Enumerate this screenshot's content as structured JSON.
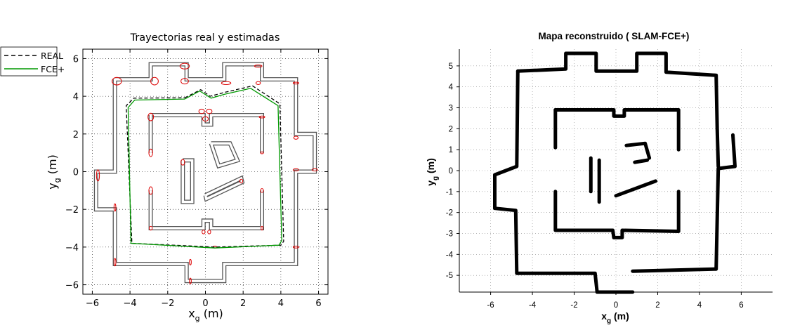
{
  "chart_data": [
    {
      "type": "line",
      "title": "Trayectorias real y estimadas",
      "xlabel": "x",
      "xlabel_sub": "g",
      "xlabel_unit": " (m)",
      "ylabel": "y",
      "ylabel_sub": "g",
      "ylabel_unit": " (m)",
      "xlim": [
        -6.5,
        6.5
      ],
      "ylim": [
        -6.5,
        6.5
      ],
      "xticks": [
        -6,
        -4,
        -2,
        0,
        2,
        4,
        6
      ],
      "yticks": [
        -6,
        -4,
        -2,
        0,
        2,
        4,
        6
      ],
      "grid": true,
      "legend": {
        "placement": "outside-top-left",
        "entries": [
          {
            "label": "REAL",
            "style": "dashed",
            "color": "#000000"
          },
          {
            "label": "FCE+",
            "style": "solid",
            "color": "#009900"
          }
        ]
      },
      "series": [
        {
          "name": "REAL",
          "color": "#000000",
          "points": [
            [
              -1.1,
              3.92
            ],
            [
              -0.25,
              4.35
            ],
            [
              0.25,
              4.0
            ],
            [
              1.0,
              4.2
            ],
            [
              2.5,
              4.55
            ],
            [
              3.95,
              3.6
            ],
            [
              4.15,
              -3.7
            ],
            [
              4.0,
              -3.9
            ],
            [
              0.5,
              -4.0
            ],
            [
              -3.9,
              -3.8
            ],
            [
              -4.2,
              3.5
            ],
            [
              -3.8,
              3.9
            ],
            [
              -1.1,
              3.92
            ]
          ]
        },
        {
          "name": "FCE+",
          "color": "#009900",
          "points": [
            [
              -1.1,
              3.85
            ],
            [
              -0.3,
              4.28
            ],
            [
              0.3,
              3.9
            ],
            [
              1.0,
              4.1
            ],
            [
              2.4,
              4.42
            ],
            [
              3.85,
              3.5
            ],
            [
              4.05,
              -3.65
            ],
            [
              3.9,
              -3.9
            ],
            [
              0.5,
              -4.05
            ],
            [
              -3.95,
              -3.8
            ],
            [
              -4.1,
              3.4
            ],
            [
              -3.75,
              3.8
            ],
            [
              -1.1,
              3.85
            ]
          ]
        }
      ],
      "map_walls": [
        [
          [
            -4.8,
            4.9
          ],
          [
            -2.9,
            4.9
          ],
          [
            -2.9,
            5.7
          ],
          [
            -1.0,
            5.7
          ],
          [
            -1.0,
            4.9
          ],
          [
            1.0,
            4.9
          ],
          [
            1.0,
            5.7
          ],
          [
            3.0,
            5.7
          ],
          [
            3.0,
            4.9
          ],
          [
            4.8,
            4.9
          ],
          [
            4.8,
            2.0
          ],
          [
            5.8,
            2.0
          ],
          [
            5.8,
            0.0
          ],
          [
            4.8,
            0.0
          ],
          [
            4.8,
            -4.9
          ],
          [
            1.0,
            -4.9
          ],
          [
            1.0,
            -5.8
          ],
          [
            -1.0,
            -5.8
          ],
          [
            -1.0,
            -4.9
          ],
          [
            -4.8,
            -4.9
          ],
          [
            -4.8,
            -2.0
          ],
          [
            -5.8,
            -2.0
          ],
          [
            -5.8,
            0.0
          ],
          [
            -4.8,
            0.0
          ],
          [
            -4.8,
            4.9
          ]
        ],
        [
          [
            -2.9,
            3.0
          ],
          [
            -0.1,
            3.0
          ],
          [
            -0.1,
            2.5
          ],
          [
            0.3,
            2.5
          ],
          [
            0.3,
            3.0
          ],
          [
            3.0,
            3.0
          ],
          [
            3.0,
            1.0
          ]
        ],
        [
          [
            3.0,
            -1.0
          ],
          [
            3.0,
            -3.0
          ],
          [
            0.3,
            -3.0
          ],
          [
            0.3,
            -2.6
          ],
          [
            -0.1,
            -2.6
          ],
          [
            -0.1,
            -3.0
          ],
          [
            -2.9,
            -3.0
          ],
          [
            -2.9,
            -1.0
          ]
        ],
        [
          [
            -2.9,
            1.0
          ],
          [
            -2.9,
            3.0
          ]
        ],
        [
          [
            -1.2,
            0.6
          ],
          [
            -0.7,
            0.6
          ],
          [
            -0.7,
            -1.6
          ],
          [
            -1.2,
            -1.6
          ],
          [
            -1.2,
            0.6
          ]
        ],
        [
          [
            0.3,
            1.5
          ],
          [
            1.3,
            1.5
          ],
          [
            1.7,
            0.6
          ],
          [
            0.7,
            0.3
          ],
          [
            0.3,
            1.5
          ]
        ],
        [
          [
            0.0,
            -1.25
          ],
          [
            1.9,
            -0.35
          ],
          [
            1.95,
            -0.55
          ],
          [
            0.05,
            -1.45
          ],
          [
            0.0,
            -1.25
          ]
        ]
      ],
      "uncertainty_ellipses": [
        [
          -4.7,
          4.8,
          0.25,
          0.2
        ],
        [
          -2.7,
          4.8,
          0.2,
          0.2
        ],
        [
          -1.1,
          5.6,
          0.25,
          0.15
        ],
        [
          -1.1,
          4.8,
          0.2,
          0.15
        ],
        [
          1.1,
          4.7,
          0.25,
          0.08
        ],
        [
          2.8,
          5.6,
          0.2,
          0.06
        ],
        [
          2.8,
          4.7,
          0.12,
          0.08
        ],
        [
          4.8,
          4.7,
          0.15,
          0.05
        ],
        [
          -2.9,
          2.9,
          0.15,
          0.2
        ],
        [
          -0.2,
          3.2,
          0.15,
          0.12
        ],
        [
          0.2,
          3.2,
          0.15,
          0.12
        ],
        [
          0.0,
          2.8,
          0.15,
          0.12
        ],
        [
          3.0,
          2.9,
          0.15,
          0.05
        ],
        [
          -2.9,
          1.0,
          0.1,
          0.2
        ],
        [
          -1.2,
          0.5,
          0.1,
          0.15
        ],
        [
          3.0,
          1.0,
          0.08,
          0.05
        ],
        [
          4.8,
          1.8,
          0.12,
          0.08
        ],
        [
          4.8,
          0.1,
          0.15,
          0.06
        ],
        [
          5.8,
          0.1,
          0.15,
          0.06
        ],
        [
          -5.7,
          -0.2,
          0.08,
          0.3
        ],
        [
          -4.8,
          -1.9,
          0.05,
          0.2
        ],
        [
          1.9,
          -0.5,
          0.08,
          0.1
        ],
        [
          -2.9,
          -1.0,
          0.1,
          0.2
        ],
        [
          3.0,
          -1.0,
          0.08,
          0.1
        ],
        [
          -2.9,
          -3.0,
          0.08,
          0.1
        ],
        [
          3.0,
          -3.0,
          0.05,
          0.1
        ],
        [
          0.2,
          -3.2,
          0.08,
          0.1
        ],
        [
          -0.1,
          -3.2,
          0.08,
          0.1
        ],
        [
          4.8,
          -4.0,
          0.15,
          0.05
        ],
        [
          -4.8,
          -4.8,
          0.05,
          0.2
        ],
        [
          -0.8,
          -4.8,
          0.05,
          0.15
        ],
        [
          -0.8,
          -5.8,
          0.05,
          0.15
        ],
        [
          0.5,
          -4.0,
          0.1,
          0.05
        ]
      ]
    },
    {
      "type": "scatter",
      "title": "Mapa reconstruido ( SLAM-FCE+)",
      "xlabel": "x",
      "xlabel_sub": "g",
      "xlabel_unit": " (m)",
      "ylabel": "y",
      "ylabel_sub": "g",
      "ylabel_unit": " (m)",
      "xlim": [
        -7.5,
        7.5
      ],
      "ylim": [
        -5.8,
        5.8
      ],
      "xticks": [
        -6,
        -4,
        -2,
        0,
        2,
        4,
        6
      ],
      "yticks": [
        -5,
        -4,
        -3,
        -2,
        -1,
        0,
        1,
        2,
        3,
        4,
        5
      ],
      "grid": true,
      "map_polylines": [
        [
          [
            -4.7,
            4.75
          ],
          [
            -2.4,
            4.85
          ],
          [
            -2.4,
            5.6
          ],
          [
            -0.95,
            5.6
          ],
          [
            -0.95,
            4.75
          ],
          [
            1.0,
            4.75
          ],
          [
            1.0,
            5.6
          ],
          [
            2.4,
            5.6
          ],
          [
            2.4,
            4.7
          ],
          [
            4.8,
            4.55
          ],
          [
            4.85,
            2.0
          ],
          [
            4.9,
            0.2
          ]
        ],
        [
          [
            -4.7,
            4.75
          ],
          [
            -4.75,
            0.2
          ],
          [
            -5.8,
            -0.2
          ],
          [
            -5.8,
            -1.8
          ],
          [
            -4.8,
            -1.9
          ],
          [
            -4.75,
            -4.9
          ],
          [
            -1.0,
            -4.9
          ],
          [
            -0.9,
            -5.8
          ],
          [
            0.8,
            -5.8
          ]
        ],
        [
          [
            0.8,
            -4.8
          ],
          [
            4.8,
            -4.7
          ],
          [
            4.9,
            0.1
          ],
          [
            5.7,
            0.2
          ],
          [
            5.6,
            1.7
          ]
        ],
        [
          [
            -2.9,
            2.9
          ],
          [
            -0.1,
            2.9
          ],
          [
            -0.1,
            2.6
          ],
          [
            0.4,
            2.6
          ],
          [
            0.4,
            2.9
          ],
          [
            3.0,
            2.9
          ],
          [
            3.0,
            1.0
          ]
        ],
        [
          [
            -2.9,
            2.9
          ],
          [
            -2.9,
            1.1
          ]
        ],
        [
          [
            -2.9,
            -1.0
          ],
          [
            -2.9,
            -2.85
          ],
          [
            -0.15,
            -2.85
          ],
          [
            -0.1,
            -3.2
          ],
          [
            0.3,
            -3.2
          ],
          [
            0.3,
            -2.85
          ],
          [
            3.0,
            -2.9
          ],
          [
            3.0,
            -1.0
          ]
        ],
        [
          [
            0.5,
            1.2
          ],
          [
            1.4,
            1.3
          ],
          [
            1.6,
            0.6
          ]
        ],
        [
          [
            0.9,
            0.4
          ],
          [
            1.5,
            0.5
          ]
        ],
        [
          [
            0.0,
            -1.2
          ],
          [
            1.9,
            -0.5
          ]
        ],
        [
          [
            -1.2,
            0.6
          ],
          [
            -1.2,
            -1.0
          ]
        ],
        [
          [
            -0.8,
            0.5
          ],
          [
            -0.8,
            -1.5
          ]
        ]
      ]
    }
  ]
}
